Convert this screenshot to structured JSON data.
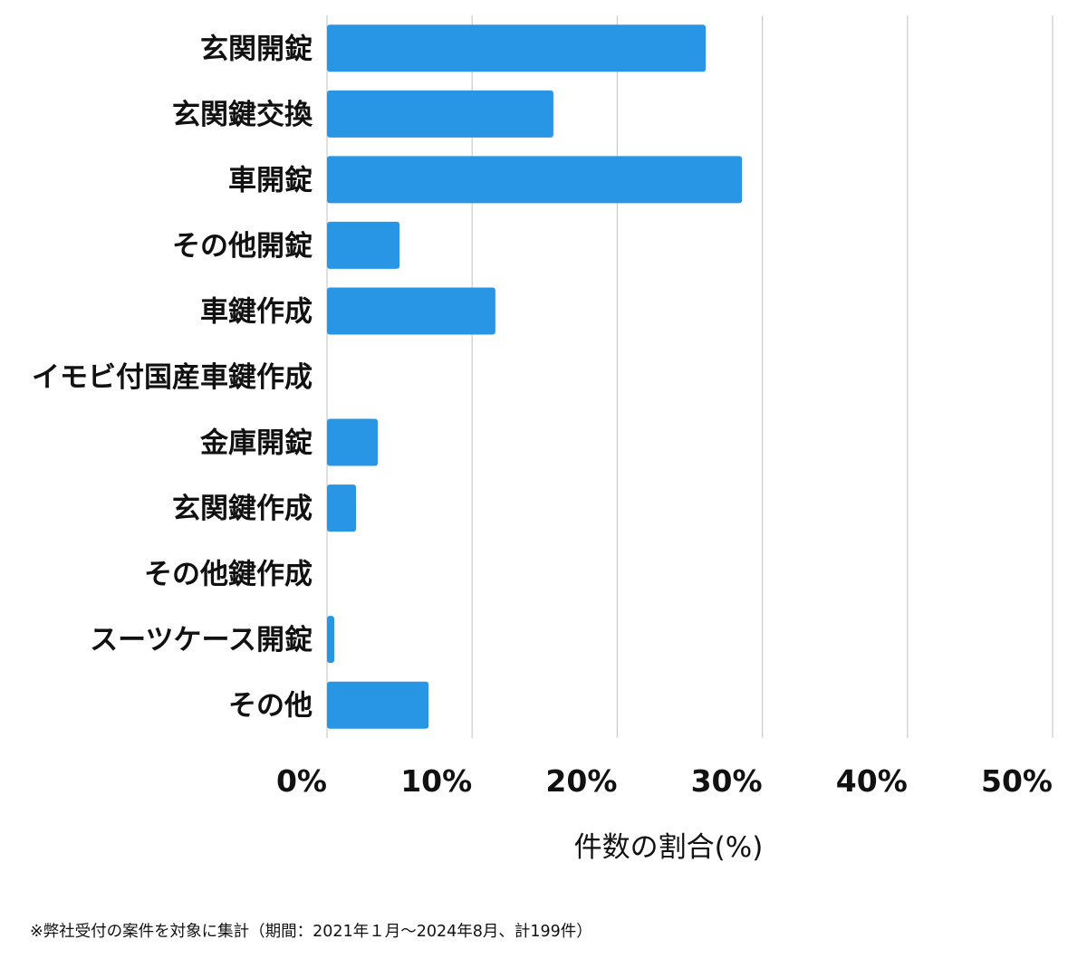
{
  "chart_data": {
    "type": "bar",
    "orientation": "horizontal",
    "categories": [
      "玄関開錠",
      "玄関鍵交換",
      "車開錠",
      "その他開錠",
      "車鍵作成",
      "イモビ付国産車鍵作成",
      "金庫開錠",
      "玄関鍵作成",
      "その他鍵作成",
      "スーツケース開錠",
      "その他"
    ],
    "values": [
      26.1,
      15.6,
      28.6,
      5.0,
      11.6,
      0,
      3.5,
      2.0,
      0,
      0.5,
      7.0
    ],
    "xlim": [
      0,
      50
    ],
    "xticks": [
      0,
      10,
      20,
      30,
      40,
      50
    ],
    "xtick_labels": [
      "0%",
      "10%",
      "20%",
      "30%",
      "40%",
      "50%"
    ],
    "xlabel": "件数の割合(%)",
    "ylabel": "",
    "title": "",
    "grid": "vertical",
    "bar_color": "#2896e5",
    "grid_color": "#cccccc"
  },
  "footnote": "※弊社受付の案件を対象に集計（期間：2021年１月〜2024年8月、計199件）"
}
